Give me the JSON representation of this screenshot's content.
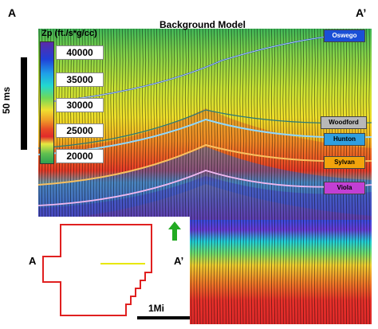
{
  "figure": {
    "corner_left": "A",
    "corner_right": "A’",
    "title": "Background Model",
    "time_scale_label": "50 ms",
    "map_scale_label": "1Mi"
  },
  "colorbar": {
    "title": "Zp (ft./s*g/cc)",
    "ticks": [
      "40000",
      "35000",
      "30000",
      "25000",
      "20000"
    ]
  },
  "horizons": [
    {
      "name": "Oswego",
      "color": "#1a4fd6",
      "text_color": "#ffffff"
    },
    {
      "name": "Woodford",
      "color": "#b8b8b8",
      "text_color": "#000000"
    },
    {
      "name": "Hunton",
      "color": "#2f9fe0",
      "text_color": "#000000"
    },
    {
      "name": "Sylvan",
      "color": "#f2a40c",
      "text_color": "#000000"
    },
    {
      "name": "Viola",
      "color": "#c23fd4",
      "text_color": "#000000"
    }
  ],
  "inset_map": {
    "label_left": "A",
    "label_right": "A’",
    "outline_color": "#e02020",
    "line_color": "#e8e800",
    "arrow_color": "#22aa22"
  }
}
